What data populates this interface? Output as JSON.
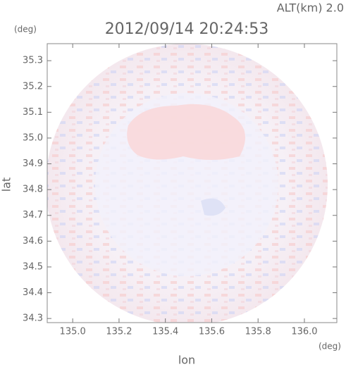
{
  "chart_data": {
    "type": "heatmap",
    "title": "2012/09/14 20:24:53",
    "annotation": "ALT(km) 2.0",
    "x_label": "lon",
    "y_label": "lat",
    "x_unit": "(deg)",
    "y_unit": "(deg)",
    "xlim": [
      134.89,
      136.14
    ],
    "xticks": [
      {
        "value": 135.0,
        "label": "135.0"
      },
      135.2,
      135.4,
      135.6,
      135.8,
      {
        "value": 136.0,
        "label": "136.0"
      }
    ],
    "ylim": [
      34.284,
      35.366
    ],
    "yticks": [
      34.3,
      34.4,
      34.5,
      34.6,
      34.7,
      34.8,
      34.9,
      {
        "value": 35.0,
        "label": "35.0"
      },
      35.1,
      35.2,
      35.3
    ]
  }
}
